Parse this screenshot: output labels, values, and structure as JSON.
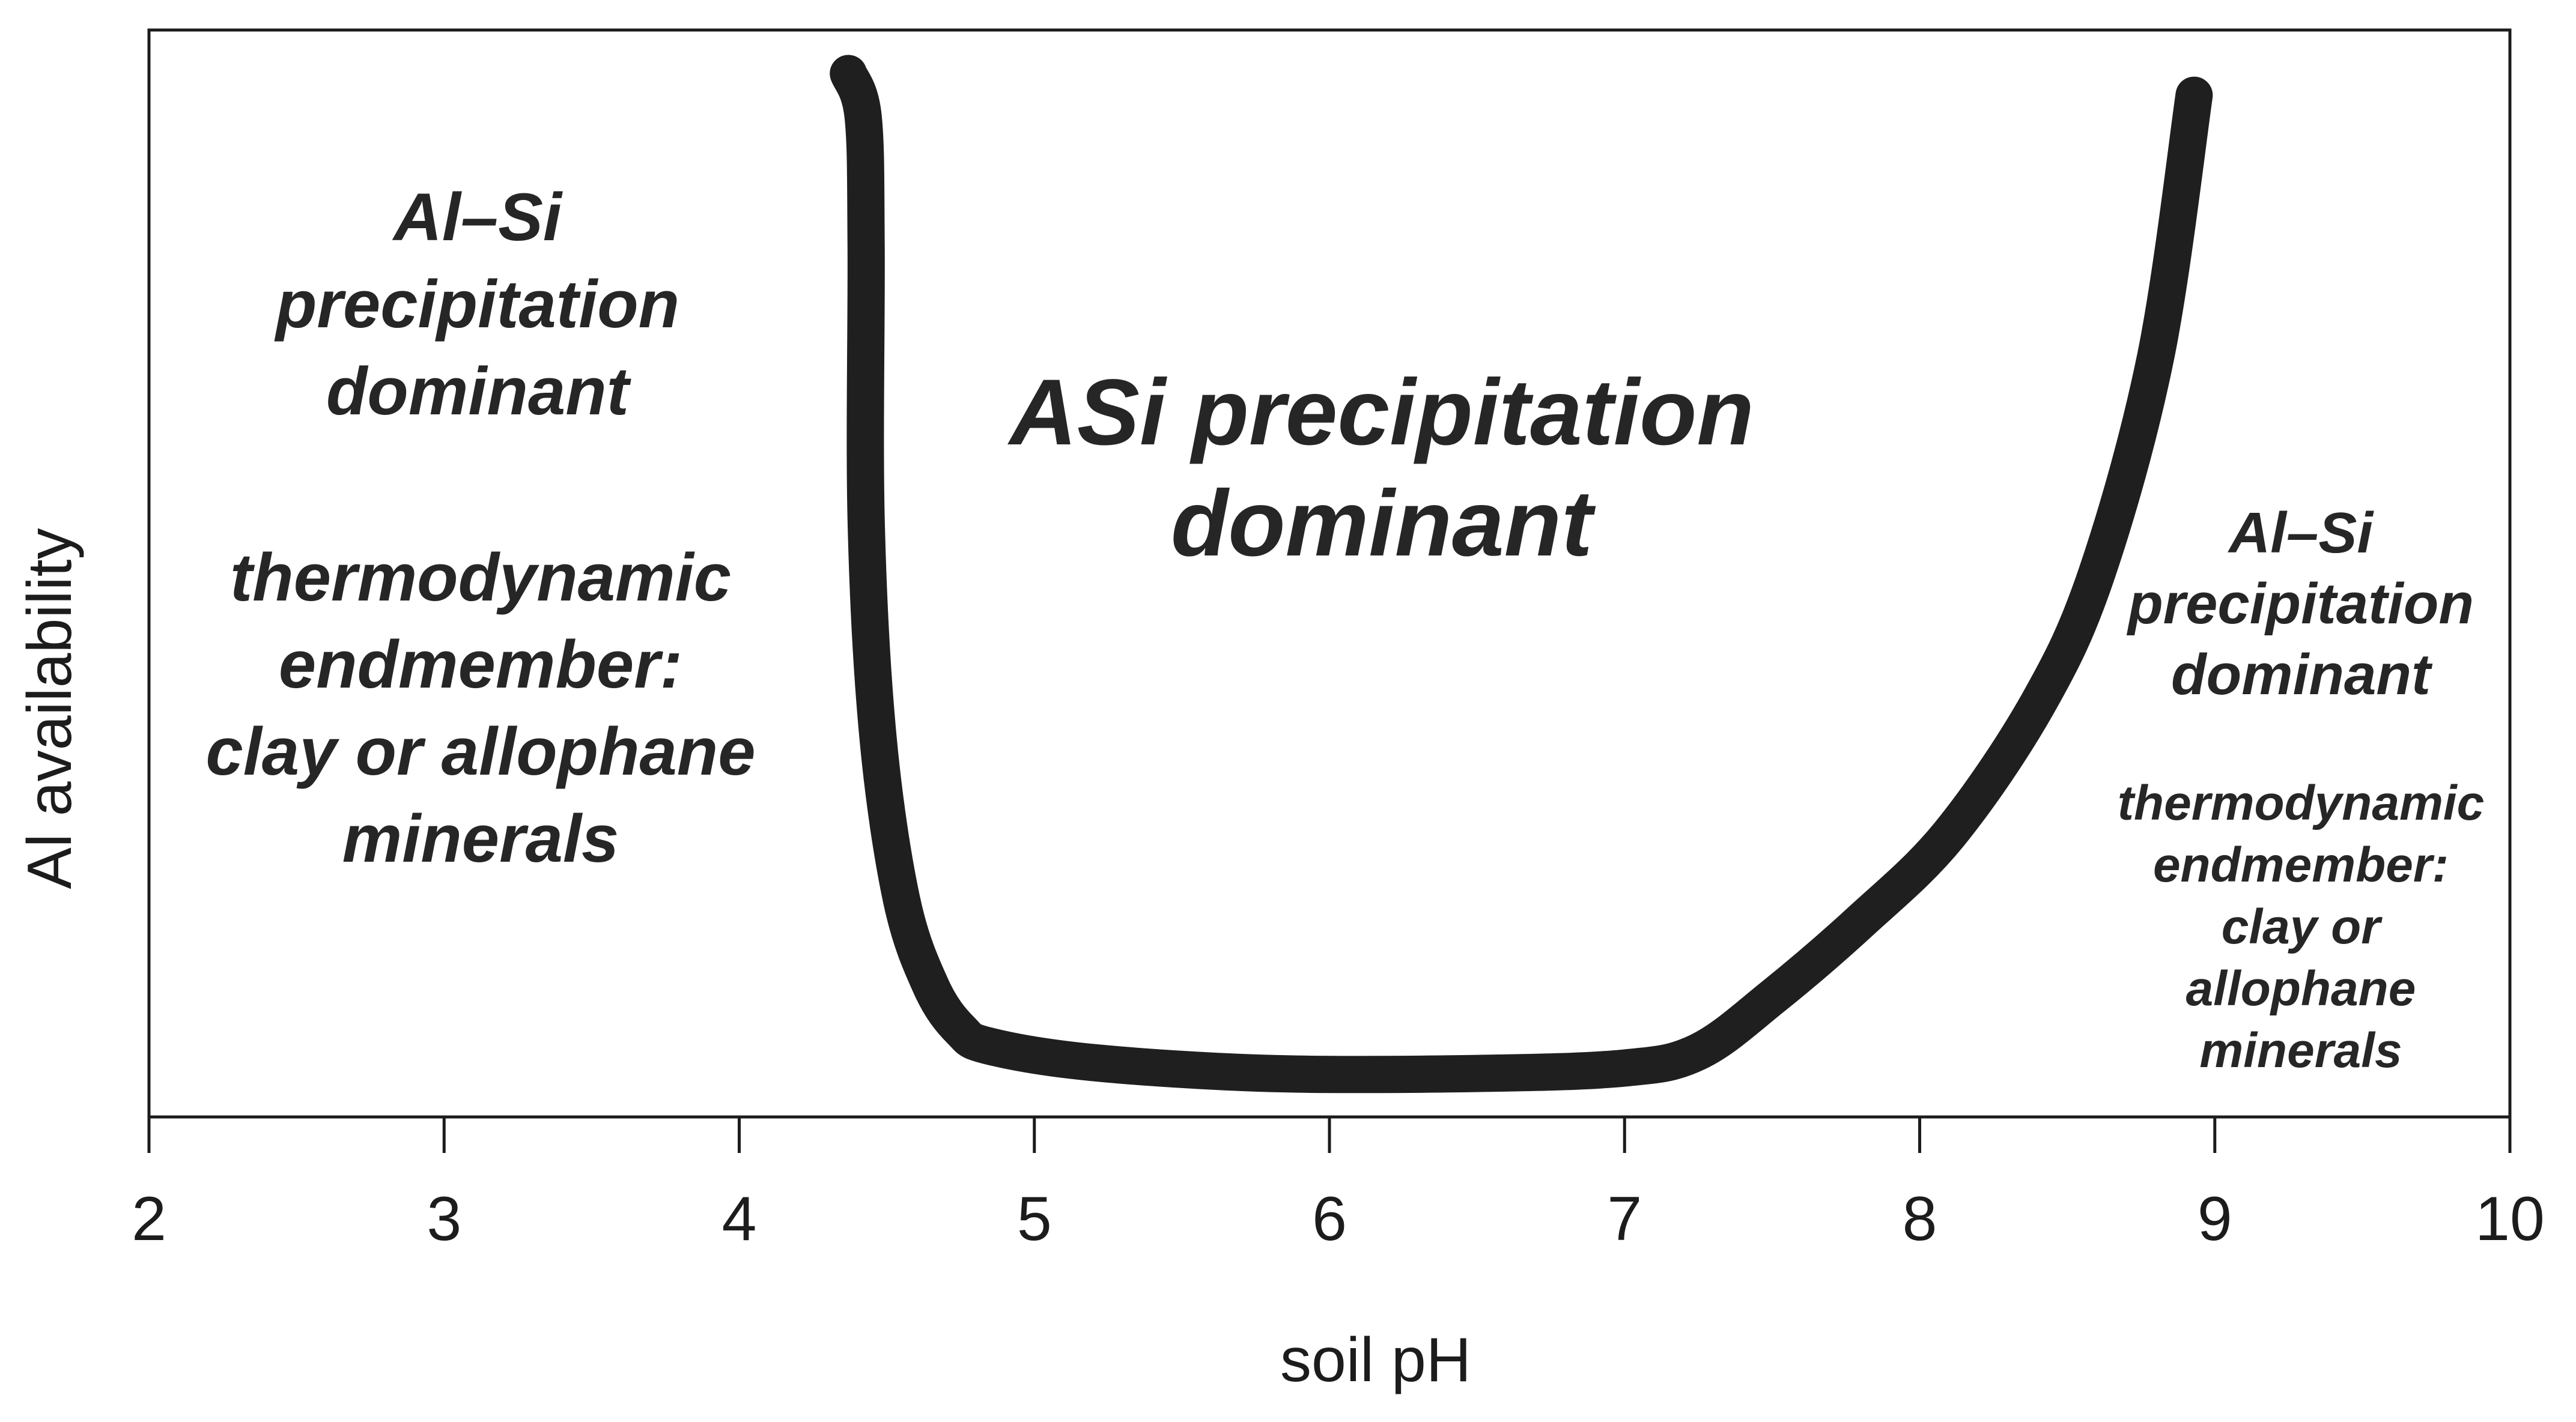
{
  "chart_data": {
    "type": "line",
    "xlabel": "soil pH",
    "ylabel": "Al availability",
    "xlim": [
      2,
      10
    ],
    "xticks": [
      "2",
      "3",
      "4",
      "5",
      "6",
      "7",
      "8",
      "9",
      "10"
    ],
    "y_tick_labels": false,
    "grid": false,
    "series": [
      {
        "color": "#1f1f1f",
        "x": [
          4.37,
          4.42,
          4.43,
          4.43,
          4.47,
          4.55,
          4.65,
          4.75,
          4.85,
          5.2,
          5.8,
          6.5,
          7.0,
          7.25,
          7.5,
          7.8,
          8.1,
          8.4,
          8.6,
          8.8,
          8.93
        ],
        "y": [
          0.96,
          0.92,
          0.8,
          0.55,
          0.35,
          0.2,
          0.12,
          0.08,
          0.065,
          0.05,
          0.04,
          0.04,
          0.045,
          0.06,
          0.11,
          0.18,
          0.26,
          0.38,
          0.5,
          0.7,
          0.94
        ]
      }
    ],
    "annotations": [
      {
        "lines": [
          "Al–Si",
          "precipitation",
          "dominant"
        ]
      },
      {
        "lines": [
          "thermodynamic",
          "endmember:",
          "clay or allophane",
          "minerals"
        ]
      },
      {
        "lines": [
          "ASi precipitation",
          "dominant"
        ]
      },
      {
        "lines": [
          "Al–Si",
          "precipitation",
          "dominant"
        ]
      },
      {
        "lines": [
          "thermodynamic",
          "endmember:",
          "clay or",
          "allophane",
          "minerals"
        ]
      }
    ]
  }
}
